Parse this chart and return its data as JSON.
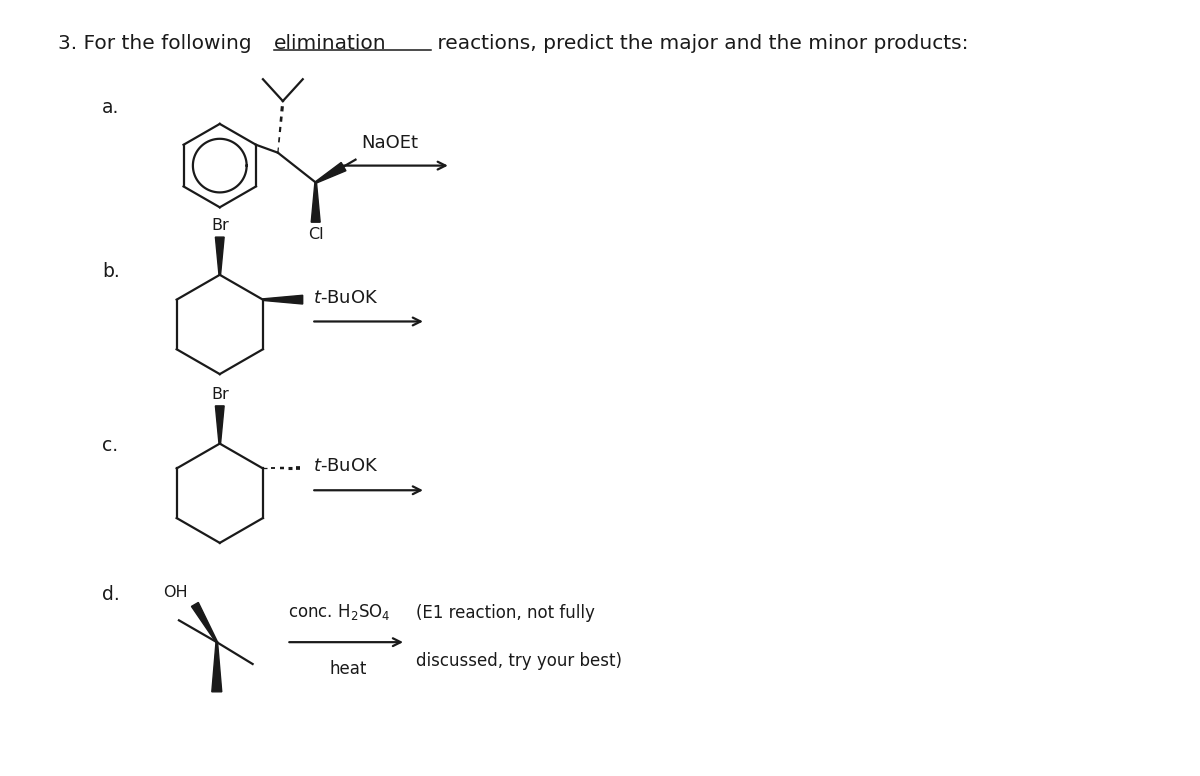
{
  "bg_color": "#ffffff",
  "text_color": "#1a1a1a",
  "font_size_title": 14.5,
  "font_size_labels": 13.5,
  "font_size_reagents": 13,
  "font_size_chem": 11.5,
  "label_a": "a.",
  "label_b": "b.",
  "label_c": "c.",
  "label_d": "d.",
  "reagent_a": "NaOEt",
  "reagent_b": "t-BuOK",
  "reagent_c": "t-BuOK",
  "reagent_d1": "conc. H",
  "reagent_d2": "SO",
  "reagent_d3": "heat",
  "note_d1": "(E1 reaction, not fully",
  "note_d2": "discussed, try your best)",
  "title_part1": "3. For the following ",
  "title_elim": "elimination",
  "title_part2": " reactions, predict the major and the minor products:"
}
